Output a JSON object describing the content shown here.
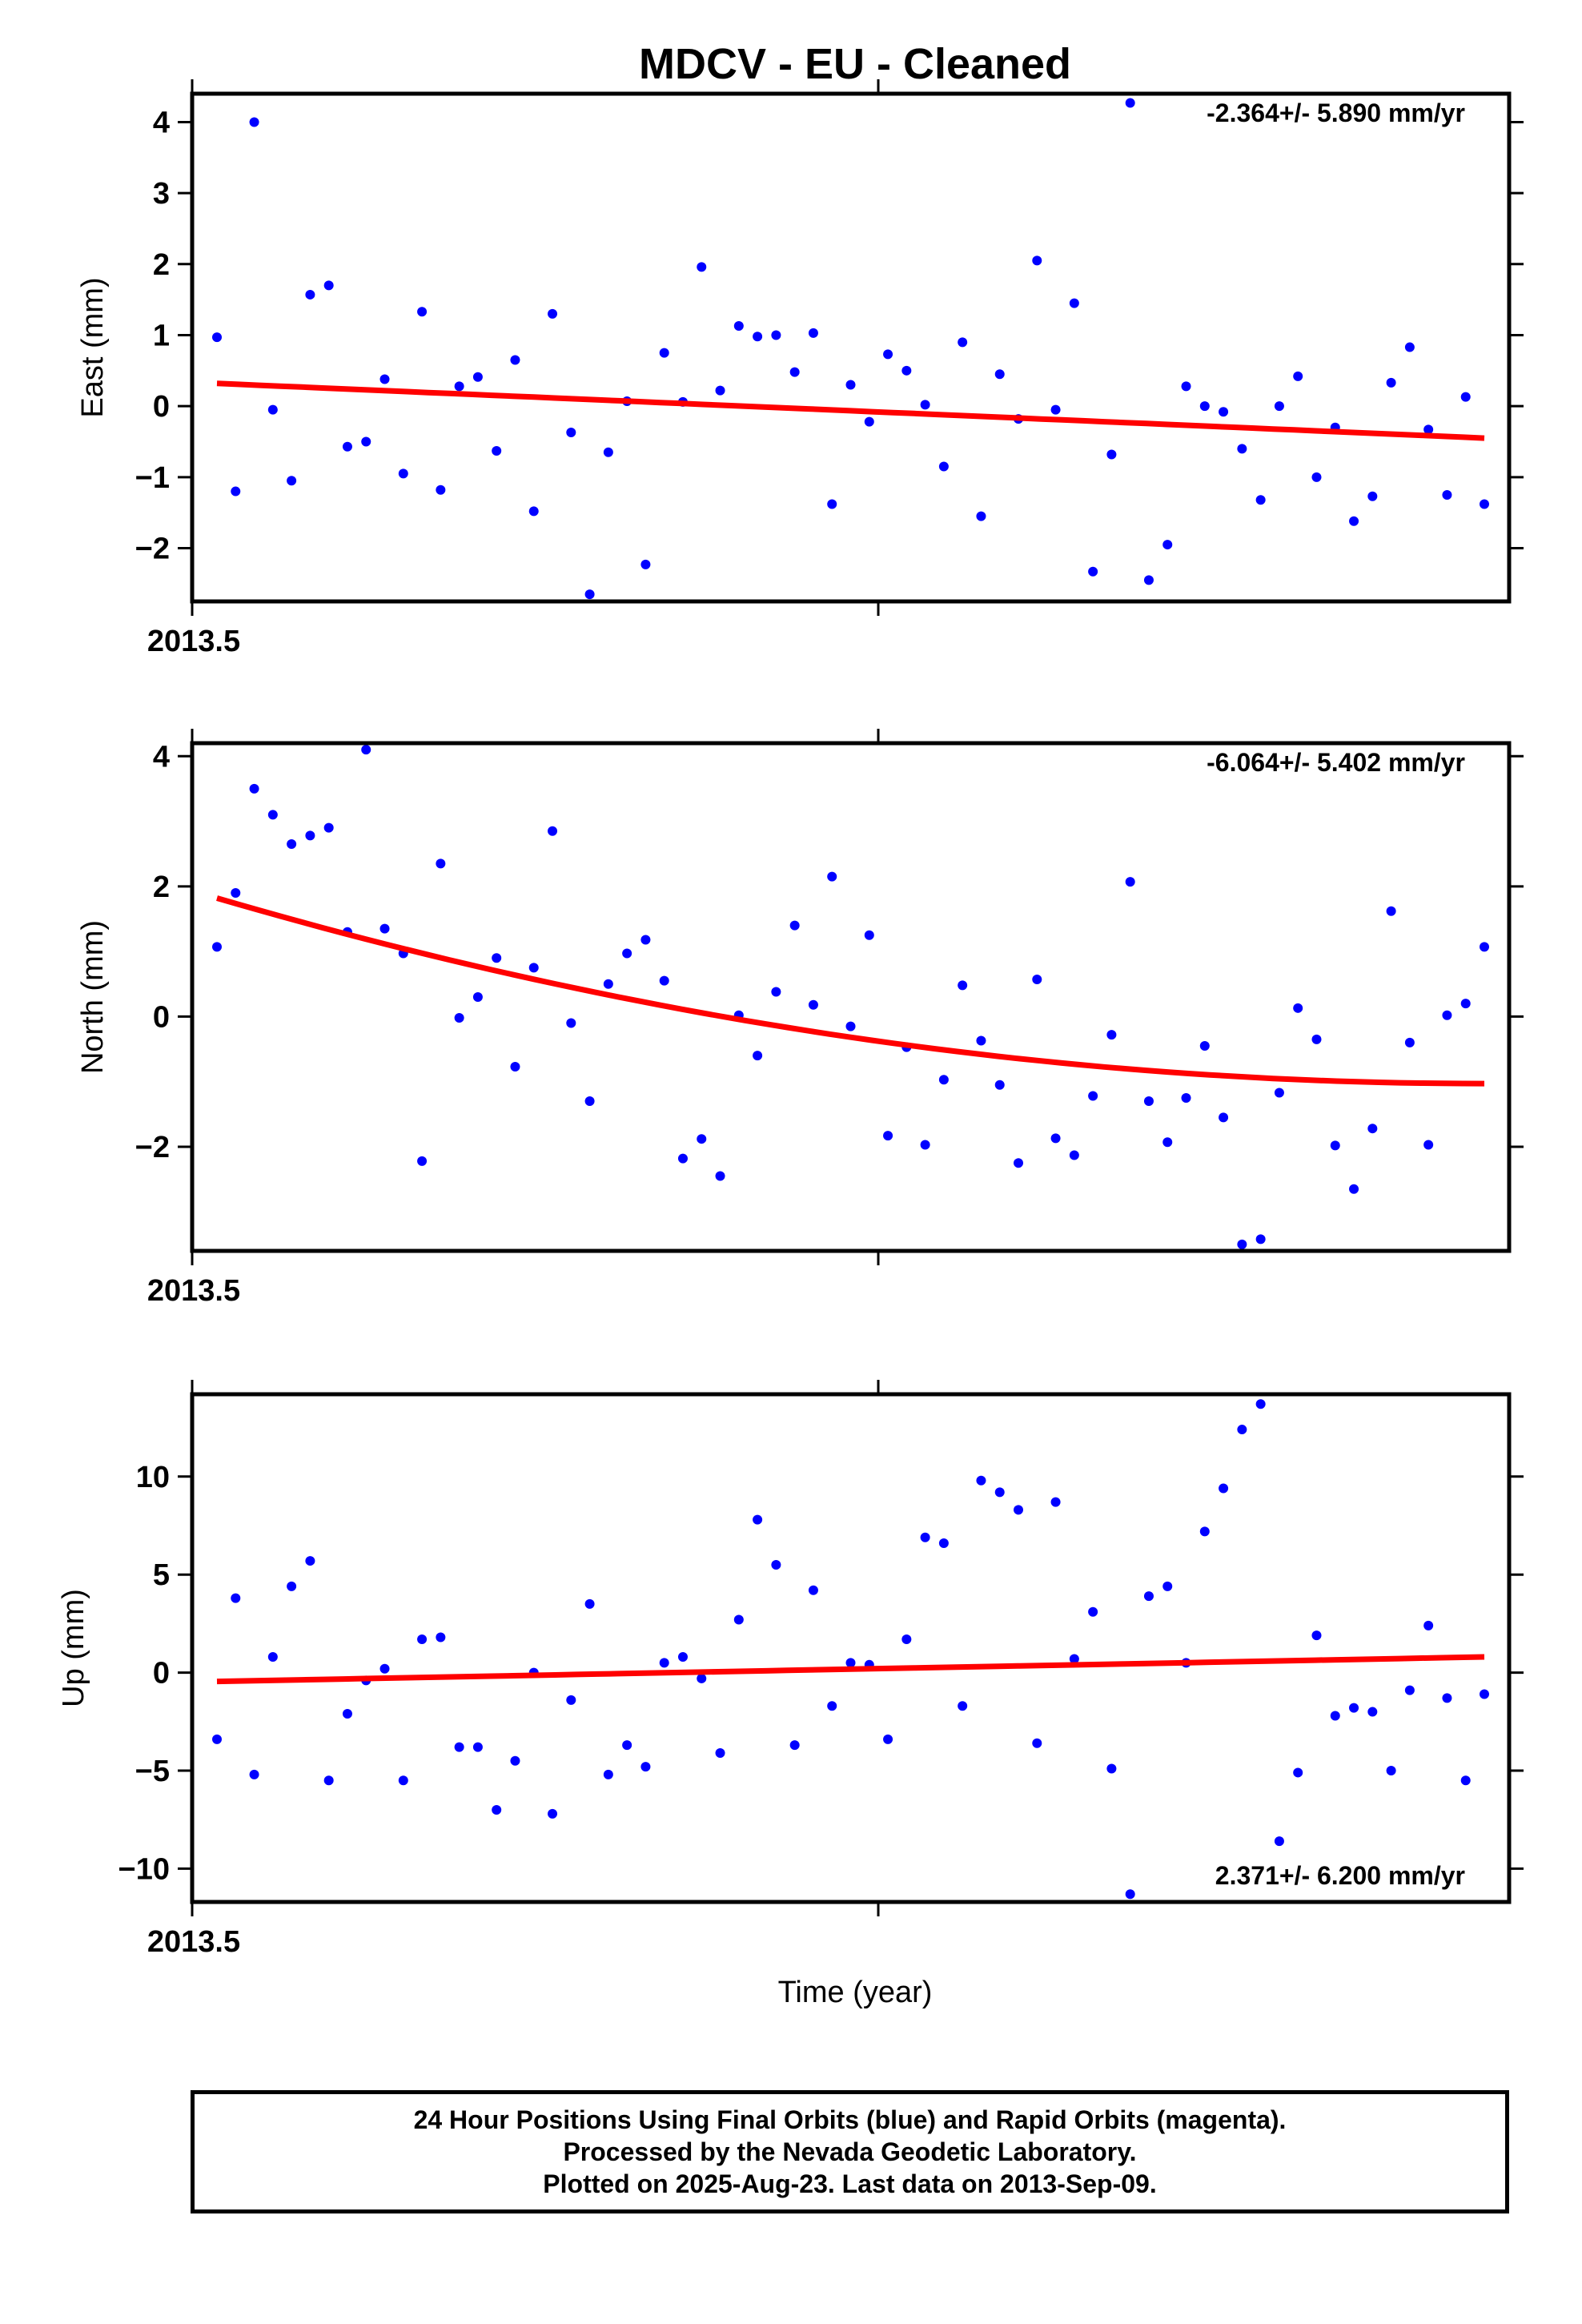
{
  "title": "MDCV  - EU - Cleaned",
  "xlabel": "Time (year)",
  "x_tick_label": "2013.5",
  "footer": {
    "line1": "24 Hour Positions Using Final Orbits (blue) and Rapid Orbits (magenta).",
    "line2": "Processed by the Nevada Geodetic Laboratory.",
    "line3": "Plotted on 2025-Aug-23. Last data on 2013-Sep-09."
  },
  "colors": {
    "points": "#0000ff",
    "fit": "#ff0000",
    "frame": "#000000"
  },
  "chart_data": [
    {
      "type": "scatter",
      "ylabel": "East (mm)",
      "rate_label": "-2.364+/- 5.890 mm/yr",
      "ylim": [
        -2.75,
        4.4
      ],
      "yticks": [
        4,
        3,
        2,
        1,
        0,
        -1,
        -2
      ],
      "ytick_labels": [
        "4",
        "3",
        "2",
        "1",
        "0",
        "−1",
        "−2"
      ],
      "x_range_days": [
        0,
        71
      ],
      "fit": {
        "start": 0.32,
        "end": -0.45,
        "shape": "linear"
      },
      "series": [
        {
          "values": [
            0.97,
            -1.2,
            4.0,
            -0.05,
            -1.05,
            1.57,
            1.7,
            -0.57,
            -0.5,
            0.38,
            -0.95,
            1.33,
            -1.18,
            0.28,
            0.41,
            -0.63,
            0.65,
            -1.48,
            1.3,
            -0.37,
            -2.65,
            -0.65,
            0.07,
            -2.23,
            0.75,
            0.06,
            1.96,
            0.22,
            1.13,
            0.98,
            1.0,
            0.48,
            1.03,
            -1.38,
            0.3,
            -0.22,
            0.73,
            0.5,
            0.02,
            -0.85,
            0.9,
            -1.55,
            0.45,
            -0.18,
            2.05,
            -0.05,
            1.45,
            -2.33,
            -0.68,
            4.27,
            -2.45,
            -1.95,
            0.28,
            0.0,
            -0.08,
            -0.6,
            -1.32,
            0.0,
            0.42,
            -1.0,
            -0.3,
            -1.62,
            -1.27,
            0.33,
            0.83,
            -0.33,
            -1.25,
            0.13,
            -1.38
          ]
        }
      ]
    },
    {
      "type": "scatter",
      "ylabel": "North (mm)",
      "rate_label": "-6.064+/- 5.402 mm/yr",
      "ylim": [
        -3.6,
        4.2
      ],
      "yticks": [
        4,
        2,
        0,
        -2
      ],
      "ytick_labels": [
        "4",
        "2",
        "0",
        "−2"
      ],
      "x_range_days": [
        0,
        71
      ],
      "fit": {
        "start": 1.82,
        "end": -1.03,
        "shape": "quadratic"
      },
      "series": [
        {
          "values": [
            1.07,
            1.9,
            3.5,
            3.1,
            2.65,
            2.78,
            2.9,
            1.3,
            4.1,
            1.35,
            0.97,
            -2.22,
            2.35,
            -0.02,
            0.3,
            0.9,
            -0.77,
            0.75,
            2.85,
            -0.1,
            -1.3,
            0.5,
            0.97,
            1.18,
            0.55,
            -2.18,
            -1.88,
            -2.45,
            0.02,
            -0.6,
            0.38,
            1.4,
            0.18,
            2.15,
            -0.15,
            1.25,
            -1.83,
            -0.47,
            -1.97,
            -0.97,
            0.48,
            -0.37,
            -1.05,
            -2.25,
            0.57,
            -1.87,
            -2.13,
            -1.22,
            -0.28,
            2.07,
            -1.3,
            -1.93,
            -1.25,
            -0.45,
            -1.55,
            -3.5,
            -3.42,
            -1.17,
            0.13,
            -0.35,
            -1.98,
            -2.65,
            -1.72,
            1.62,
            -0.4,
            -1.97,
            0.02,
            0.2,
            1.07
          ]
        }
      ]
    },
    {
      "type": "scatter",
      "ylabel": "Up (mm)",
      "rate_label": "2.371+/- 6.200 mm/yr",
      "ylim": [
        -11.7,
        14.2
      ],
      "yticks": [
        10,
        5,
        0,
        -5,
        -10
      ],
      "ytick_labels": [
        "10",
        "5",
        "0",
        "−5",
        "−10"
      ],
      "x_range_days": [
        0,
        71
      ],
      "fit": {
        "start": -0.45,
        "end": 0.8,
        "shape": "linear"
      },
      "series": [
        {
          "values": [
            -3.4,
            3.8,
            -5.2,
            0.8,
            4.4,
            5.7,
            -5.5,
            -2.1,
            -0.4,
            0.2,
            -5.5,
            1.7,
            1.8,
            -3.8,
            -3.8,
            -7.0,
            -4.5,
            0.0,
            -7.2,
            -1.4,
            3.5,
            -5.2,
            -3.7,
            -4.8,
            0.5,
            0.8,
            -0.3,
            -4.1,
            2.7,
            7.8,
            5.5,
            -3.7,
            4.2,
            -1.7,
            0.5,
            0.4,
            -3.4,
            1.7,
            6.9,
            6.6,
            -1.7,
            9.8,
            9.2,
            8.3,
            -3.6,
            8.7,
            0.7,
            3.1,
            -4.9,
            -11.3,
            3.9,
            4.4,
            0.5,
            7.2,
            9.4,
            12.4,
            13.7,
            -8.6,
            -5.1,
            1.9,
            -2.2,
            -1.8,
            -2.0,
            -5.0,
            -0.9,
            2.4,
            -1.3,
            -5.5,
            -1.1
          ]
        }
      ]
    }
  ]
}
